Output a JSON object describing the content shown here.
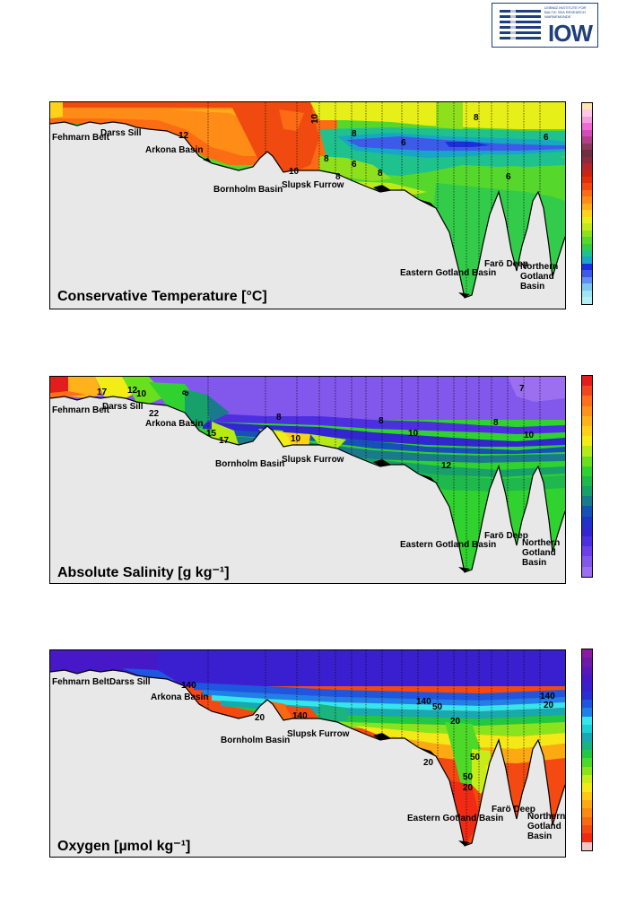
{
  "logo": {
    "text": "IOW",
    "org_lines": "LEIBNIZ INSTITUTE FOR\nBALTIC SEA RESEARCH\nWARNEMÜNDE"
  },
  "chart_data": [
    {
      "type": "heatmap",
      "title": "Conservative Temperature [°C]",
      "locations": [
        "Fehmarn Belt",
        "Darss Sill",
        "Arkona Basin",
        "Bornholm Basin",
        "Slupsk Furrow",
        "Eastern Gotland Basin",
        "Farö Deep",
        "Northern Gotland Basin"
      ],
      "contour_labels": [
        12,
        10,
        10,
        8,
        8,
        8,
        8,
        8,
        6,
        6,
        6,
        6
      ],
      "colors": [
        "#b3f0f5",
        "#9ee4f2",
        "#7fc6f0",
        "#5f8ff0",
        "#3d5be8",
        "#1e2ddc",
        "#17a6c5",
        "#1fc18d",
        "#32cc4a",
        "#56d72c",
        "#8ee01c",
        "#bfe91a",
        "#e6ef17",
        "#ffd21a",
        "#ffae18",
        "#ff8c17",
        "#fb6c14",
        "#f04a10",
        "#e2300d",
        "#cc2410",
        "#b3262e",
        "#8a2b3e",
        "#6e3040",
        "#8c3a5a",
        "#b24088",
        "#d44cb8",
        "#ee6ad6",
        "#f59de0",
        "#fbc8ea",
        "#ffe6b4"
      ]
    },
    {
      "type": "heatmap",
      "title": "Absolute Salinity [g kg⁻¹]",
      "locations": [
        "Fehmarn Belt",
        "Darss Sill",
        "Arkona Basin",
        "Bornholm Basin",
        "Slupsk Furrow",
        "Eastern Gotland Basin",
        "Farö Deep",
        "Northern Gotland Basin"
      ],
      "contour_labels": [
        17,
        12,
        10,
        22,
        8,
        8,
        8,
        8,
        7,
        15,
        17,
        10,
        10,
        10,
        12
      ],
      "colors": [
        "#9b6ff0",
        "#8257ec",
        "#6a40e8",
        "#4d2fe0",
        "#3226d0",
        "#1f33c8",
        "#1651b8",
        "#1a7a8c",
        "#17a06a",
        "#1eb84d",
        "#2fd22f",
        "#6adf1d",
        "#b5ea18",
        "#f2ee15",
        "#ffd116",
        "#ffb219",
        "#ff931a",
        "#ff6f1c",
        "#f0481c",
        "#e41c1c"
      ]
    },
    {
      "type": "heatmap",
      "title": "Oxygen [µmol kg⁻¹]",
      "locations": [
        "Fehmarn Belt",
        "Darss Sill",
        "Arkona Basin",
        "Bornholm Basin",
        "Slupsk Furrow",
        "Eastern Gotland Basin",
        "Farö Deep",
        "Northern Gotland Basin"
      ],
      "contour_labels": [
        140,
        20,
        140,
        140,
        50,
        20,
        20,
        50,
        50,
        20,
        140,
        20
      ],
      "colors": [
        "#f2c8c8",
        "#f02a14",
        "#f44a12",
        "#f86a12",
        "#fb8a12",
        "#fdaa12",
        "#ffc814",
        "#f4e816",
        "#c8ec18",
        "#8ae41c",
        "#4ed828",
        "#20c844",
        "#1ab47c",
        "#17a8b0",
        "#1ad0d8",
        "#34e6ec",
        "#1f80e8",
        "#1e56e0",
        "#2a2cd4",
        "#3a1fd0",
        "#4618c8",
        "#5a18b8",
        "#6e1aa8",
        "#8a1aa0"
      ]
    }
  ]
}
